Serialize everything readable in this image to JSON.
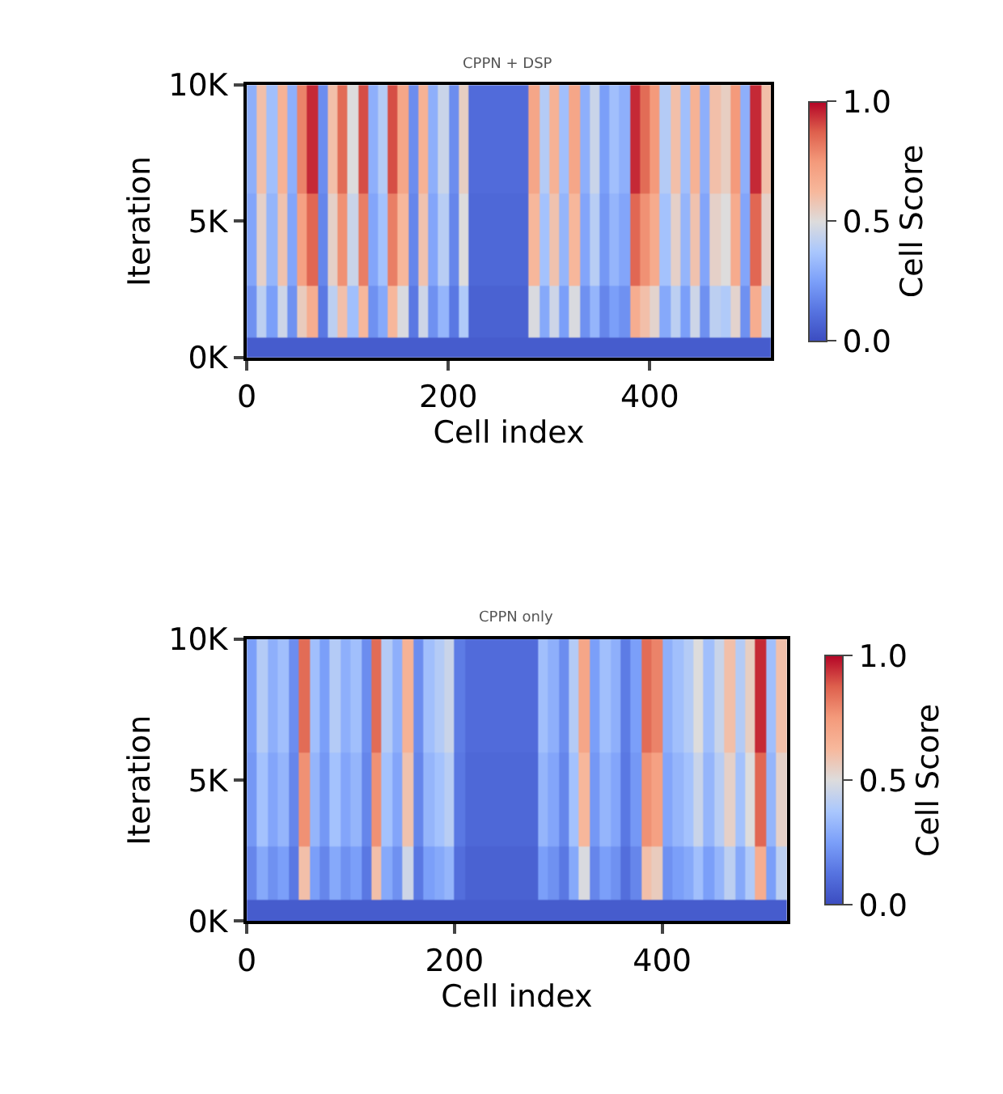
{
  "chart_data": [
    {
      "type": "heatmap",
      "title": "CPPN + DSP",
      "xlabel": "Cell index",
      "ylabel": "Iteration",
      "clabel": "Cell Score",
      "x": [
        5,
        15,
        25,
        35,
        45,
        55,
        65,
        75,
        85,
        95,
        105,
        115,
        125,
        135,
        145,
        155,
        165,
        175,
        185,
        195,
        205,
        215,
        225,
        235,
        245,
        255,
        265,
        275,
        285,
        295,
        305,
        315,
        325,
        335,
        345,
        355,
        365,
        375,
        385,
        395,
        405,
        415,
        425,
        435,
        445,
        455,
        465,
        475,
        485,
        495,
        505,
        515
      ],
      "y": [
        250,
        1250,
        4000,
        8000
      ],
      "cells": [
        [
          0.05,
          0.05,
          0.05,
          0.05,
          0.05,
          0.05,
          0.05,
          0.05,
          0.05,
          0.05,
          0.05,
          0.05,
          0.05,
          0.05,
          0.05,
          0.05,
          0.05,
          0.05,
          0.05,
          0.05,
          0.05,
          0.05,
          0.05,
          0.05,
          0.05,
          0.05,
          0.05,
          0.05,
          0.05,
          0.05,
          0.05,
          0.05,
          0.05,
          0.05,
          0.05,
          0.05,
          0.05,
          0.05,
          0.05,
          0.05,
          0.05,
          0.05,
          0.05,
          0.05,
          0.05,
          0.05,
          0.05,
          0.05,
          0.05,
          0.05,
          0.05,
          0.05
        ],
        [
          0.21,
          0.42,
          0.25,
          0.46,
          0.21,
          0.56,
          0.67,
          0.14,
          0.42,
          0.6,
          0.35,
          0.63,
          0.21,
          0.28,
          0.63,
          0.49,
          0.14,
          0.46,
          0.21,
          0.32,
          0.14,
          0.39,
          0.07,
          0.07,
          0.07,
          0.07,
          0.07,
          0.07,
          0.49,
          0.28,
          0.46,
          0.25,
          0.49,
          0.21,
          0.32,
          0.18,
          0.25,
          0.21,
          0.67,
          0.6,
          0.53,
          0.28,
          0.42,
          0.25,
          0.46,
          0.21,
          0.42,
          0.39,
          0.53,
          0.21,
          0.67,
          0.42
        ],
        [
          0.27,
          0.54,
          0.32,
          0.59,
          0.27,
          0.72,
          0.86,
          0.18,
          0.54,
          0.77,
          0.45,
          0.81,
          0.27,
          0.36,
          0.81,
          0.63,
          0.18,
          0.59,
          0.27,
          0.41,
          0.18,
          0.5,
          0.09,
          0.09,
          0.09,
          0.09,
          0.09,
          0.09,
          0.63,
          0.36,
          0.59,
          0.32,
          0.63,
          0.27,
          0.41,
          0.23,
          0.32,
          0.27,
          0.86,
          0.77,
          0.68,
          0.36,
          0.54,
          0.32,
          0.59,
          0.27,
          0.54,
          0.5,
          0.68,
          0.27,
          0.86,
          0.54
        ],
        [
          0.3,
          0.6,
          0.35,
          0.65,
          0.3,
          0.8,
          0.95,
          0.2,
          0.6,
          0.85,
          0.5,
          0.9,
          0.3,
          0.4,
          0.9,
          0.7,
          0.2,
          0.65,
          0.3,
          0.45,
          0.2,
          0.55,
          0.1,
          0.1,
          0.1,
          0.1,
          0.1,
          0.1,
          0.7,
          0.4,
          0.65,
          0.35,
          0.7,
          0.3,
          0.45,
          0.25,
          0.35,
          0.3,
          0.95,
          0.85,
          0.75,
          0.4,
          0.6,
          0.35,
          0.65,
          0.3,
          0.6,
          0.55,
          0.75,
          0.3,
          0.95,
          0.6
        ]
      ],
      "xlim": [
        0,
        520
      ],
      "xticks": [
        0,
        200,
        400
      ],
      "ylim": [
        0,
        10000
      ],
      "yticks": [
        {
          "value": 0,
          "label": "0K"
        },
        {
          "value": 5000,
          "label": "5K"
        },
        {
          "value": 10000,
          "label": "10K"
        }
      ],
      "clim": [
        0,
        1
      ],
      "cticks": [
        {
          "value": 0,
          "label": "0.0"
        },
        {
          "value": 0.5,
          "label": "0.5"
        },
        {
          "value": 1,
          "label": "1.0"
        }
      ]
    },
    {
      "type": "heatmap",
      "title": "CPPN only",
      "xlabel": "Cell index",
      "ylabel": "Iteration",
      "clabel": "Cell Score",
      "x": [
        5,
        15,
        25,
        35,
        45,
        55,
        65,
        75,
        85,
        95,
        105,
        115,
        125,
        135,
        145,
        155,
        165,
        175,
        185,
        195,
        205,
        215,
        225,
        235,
        245,
        255,
        265,
        275,
        285,
        295,
        305,
        315,
        325,
        335,
        345,
        355,
        365,
        375,
        385,
        395,
        405,
        415,
        425,
        435,
        445,
        455,
        465,
        475,
        485,
        495,
        505,
        515
      ],
      "y": [
        250,
        1250,
        4000,
        8000
      ],
      "cells": [
        [
          0.05,
          0.05,
          0.05,
          0.05,
          0.05,
          0.05,
          0.05,
          0.05,
          0.05,
          0.05,
          0.05,
          0.05,
          0.05,
          0.05,
          0.05,
          0.05,
          0.05,
          0.05,
          0.05,
          0.05,
          0.05,
          0.05,
          0.05,
          0.05,
          0.05,
          0.05,
          0.05,
          0.05,
          0.05,
          0.05,
          0.05,
          0.05,
          0.05,
          0.05,
          0.05,
          0.05,
          0.05,
          0.05,
          0.05,
          0.05,
          0.05,
          0.05,
          0.05,
          0.05,
          0.05,
          0.05,
          0.05,
          0.05,
          0.05,
          0.05,
          0.05,
          0.05
        ],
        [
          0.18,
          0.28,
          0.21,
          0.25,
          0.14,
          0.6,
          0.25,
          0.18,
          0.28,
          0.21,
          0.25,
          0.14,
          0.6,
          0.28,
          0.21,
          0.46,
          0.14,
          0.25,
          0.28,
          0.32,
          0.11,
          0.07,
          0.07,
          0.07,
          0.07,
          0.07,
          0.07,
          0.07,
          0.25,
          0.21,
          0.14,
          0.28,
          0.49,
          0.18,
          0.25,
          0.21,
          0.11,
          0.18,
          0.6,
          0.56,
          0.21,
          0.25,
          0.28,
          0.35,
          0.25,
          0.32,
          0.42,
          0.28,
          0.39,
          0.67,
          0.25,
          0.42
        ],
        [
          0.23,
          0.36,
          0.27,
          0.32,
          0.18,
          0.77,
          0.32,
          0.23,
          0.36,
          0.27,
          0.32,
          0.18,
          0.77,
          0.36,
          0.27,
          0.59,
          0.18,
          0.32,
          0.36,
          0.41,
          0.14,
          0.09,
          0.09,
          0.09,
          0.09,
          0.09,
          0.09,
          0.09,
          0.32,
          0.27,
          0.18,
          0.36,
          0.63,
          0.23,
          0.32,
          0.27,
          0.14,
          0.23,
          0.77,
          0.72,
          0.27,
          0.32,
          0.36,
          0.45,
          0.32,
          0.41,
          0.54,
          0.36,
          0.5,
          0.86,
          0.32,
          0.54
        ],
        [
          0.25,
          0.4,
          0.3,
          0.35,
          0.2,
          0.85,
          0.35,
          0.25,
          0.4,
          0.3,
          0.35,
          0.2,
          0.85,
          0.4,
          0.3,
          0.65,
          0.2,
          0.35,
          0.4,
          0.45,
          0.15,
          0.1,
          0.1,
          0.1,
          0.1,
          0.1,
          0.1,
          0.1,
          0.35,
          0.3,
          0.2,
          0.4,
          0.7,
          0.25,
          0.35,
          0.3,
          0.15,
          0.25,
          0.85,
          0.8,
          0.3,
          0.35,
          0.4,
          0.5,
          0.35,
          0.45,
          0.6,
          0.4,
          0.55,
          0.95,
          0.35,
          0.6
        ]
      ],
      "xlim": [
        0,
        520
      ],
      "xticks": [
        0,
        200,
        400
      ],
      "ylim": [
        0,
        10000
      ],
      "yticks": [
        {
          "value": 0,
          "label": "0K"
        },
        {
          "value": 5000,
          "label": "5K"
        },
        {
          "value": 10000,
          "label": "10K"
        }
      ],
      "clim": [
        0,
        1
      ],
      "cticks": [
        {
          "value": 0,
          "label": "0.0"
        },
        {
          "value": 0.5,
          "label": "0.5"
        },
        {
          "value": 1,
          "label": "1.0"
        }
      ]
    }
  ]
}
